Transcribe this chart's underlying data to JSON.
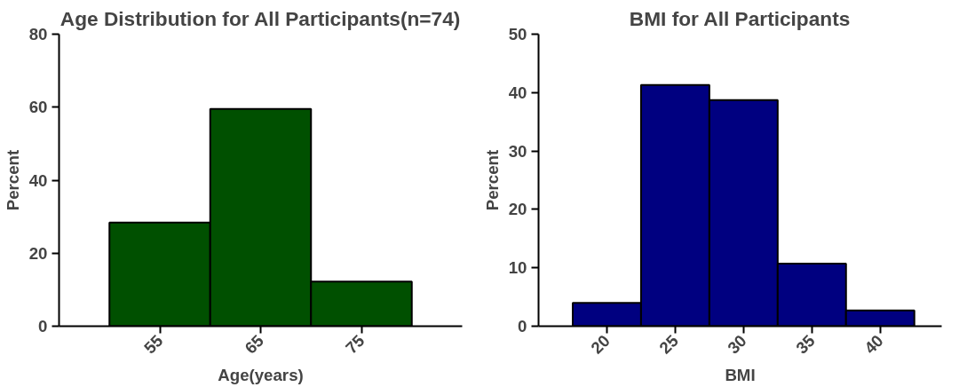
{
  "chart_data": [
    {
      "type": "histogram",
      "title": "Age Distribution for All Participants(n=74)",
      "xlabel": "Age(years)",
      "ylabel": "Percent",
      "bins": [
        50,
        60,
        70,
        80
      ],
      "values": [
        28.4,
        59.5,
        12.2
      ],
      "color": "#005000",
      "xlim": [
        45,
        85
      ],
      "xticks": [
        55,
        65,
        75
      ],
      "ylim": [
        0,
        80
      ],
      "yticks": [
        0,
        20,
        40,
        60,
        80
      ],
      "grid": false
    },
    {
      "type": "histogram",
      "title": "BMI for All Participants",
      "xlabel": "BMI",
      "ylabel": "Percent",
      "bins": [
        17.5,
        22.5,
        27.5,
        32.5,
        37.5,
        42.5
      ],
      "values": [
        4.0,
        41.3,
        38.7,
        10.7,
        2.7
      ],
      "color": "#000080",
      "xlim": [
        15,
        44.5
      ],
      "xticks": [
        20,
        25,
        30,
        35,
        40
      ],
      "ylim": [
        0,
        50
      ],
      "yticks": [
        0,
        10,
        20,
        30,
        40,
        50
      ],
      "grid": false
    }
  ]
}
